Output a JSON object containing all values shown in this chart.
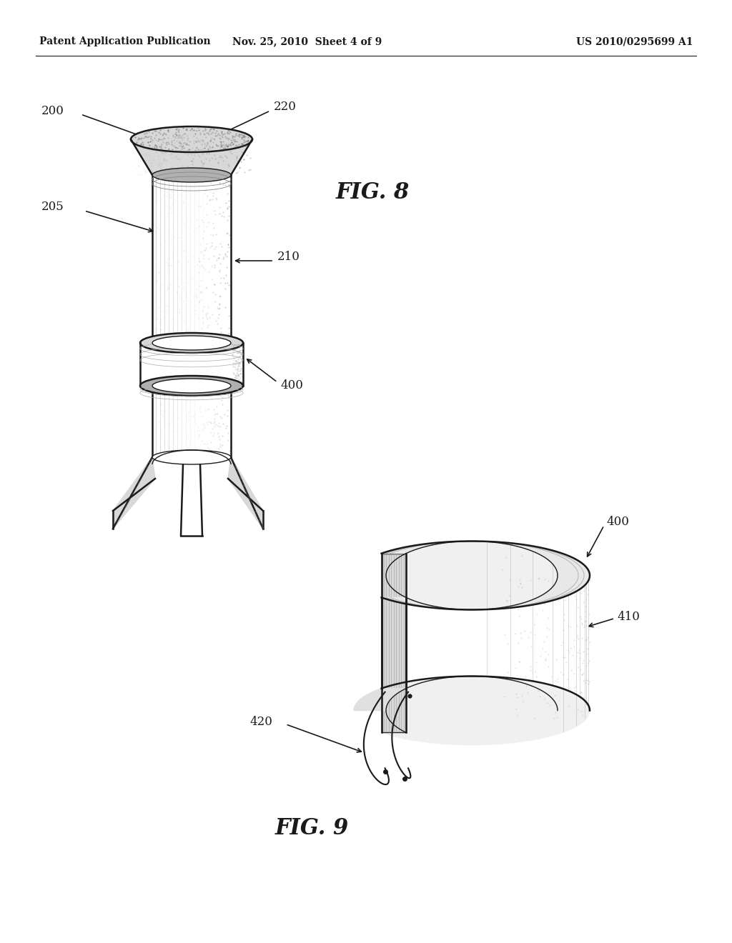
{
  "background_color": "#ffffff",
  "header_left": "Patent Application Publication",
  "header_center": "Nov. 25, 2010  Sheet 4 of 9",
  "header_right": "US 2010/0295699 A1",
  "line_color": "#1a1a1a",
  "shade_light": "#d8d8d8",
  "shade_med": "#b0b0b0",
  "shade_dark": "#888888",
  "hatch_color": "#555555",
  "fig8_label": "FIG. 8",
  "fig9_label": "FIG. 9",
  "note_fontsize": 11.5
}
